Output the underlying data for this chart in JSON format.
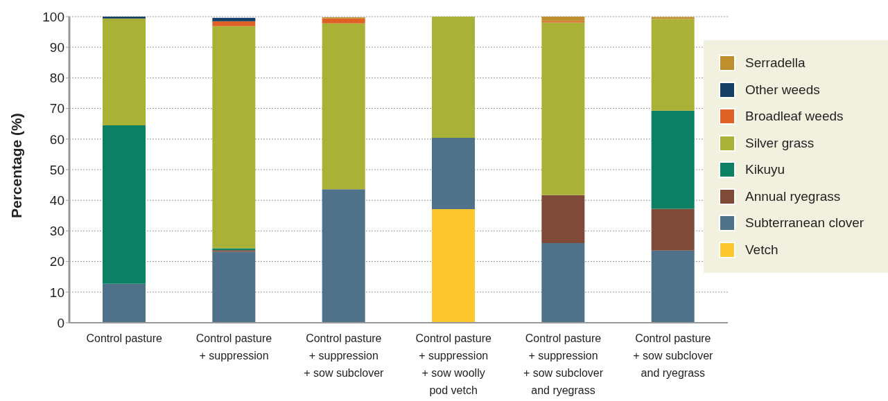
{
  "chart_data": {
    "type": "bar",
    "stacked": true,
    "ylabel": "Percentage (%)",
    "categories": [
      "Control pasture",
      "Control pasture\n+ suppression",
      "Control pasture\n+ suppression\n+ sow subclover",
      "Control pasture\n+ suppression\n+ sow woolly\npod vetch",
      "Control pasture\n+ suppression\n+ sow subclover\nand ryegrass",
      "Control pasture\n+ sow subclover\nand ryegrass"
    ],
    "series": [
      {
        "name": "Vetch",
        "color": "#fdc82f",
        "values": [
          0,
          0,
          0,
          37.1,
          0,
          0
        ]
      },
      {
        "name": "Subterranean clover",
        "color": "#4f7189",
        "values": [
          12.7,
          23.2,
          43.6,
          23.3,
          26.0,
          23.6
        ]
      },
      {
        "name": "Annual ryegrass",
        "color": "#7f4b38",
        "values": [
          0,
          0.5,
          0,
          0,
          15.7,
          13.6
        ]
      },
      {
        "name": "Kikuyu",
        "color": "#0b8063",
        "values": [
          51.8,
          0.6,
          0,
          0,
          0,
          32.1
        ]
      },
      {
        "name": "Silver grass",
        "color": "#a9b237",
        "values": [
          34.9,
          72.6,
          54.2,
          39.6,
          56.4,
          29.9
        ]
      },
      {
        "name": "Broadleaf weeds",
        "color": "#e06126",
        "values": [
          0,
          1.6,
          1.6,
          0,
          0.4,
          0
        ]
      },
      {
        "name": "Other weeds",
        "color": "#163f66",
        "values": [
          0.6,
          1.1,
          0,
          0,
          0,
          0
        ]
      },
      {
        "name": "Serradella",
        "color": "#bf8f2e",
        "values": [
          0,
          0,
          0.4,
          0,
          1.5,
          0.7
        ]
      }
    ],
    "ylim": [
      0,
      100
    ],
    "yticks": [
      0,
      10,
      20,
      30,
      40,
      50,
      60,
      70,
      80,
      90,
      100
    ],
    "grid": "y",
    "legend": "right"
  }
}
